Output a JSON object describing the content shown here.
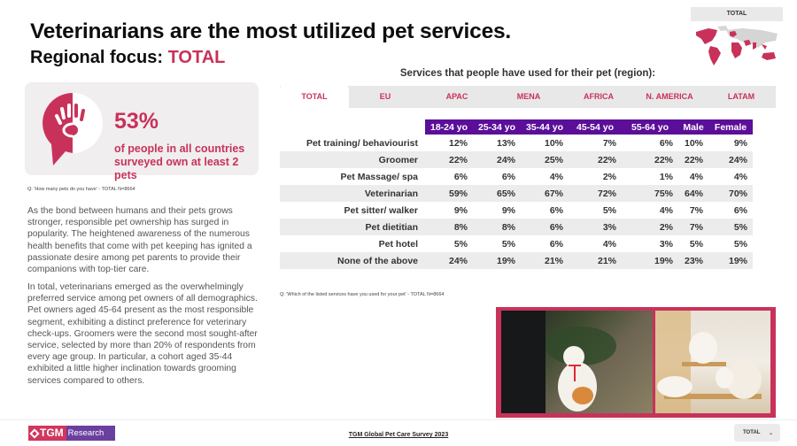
{
  "header": {
    "title": "Veterinarians are the most utilized pet services.",
    "subtitle_prefix": "Regional focus:",
    "subtitle_region": "TOTAL"
  },
  "map_widget": {
    "label": "TOTAL",
    "highlight_color": "#c8325a"
  },
  "stat_card": {
    "icon": "pet-hand-paw-icon",
    "percentage": "53%",
    "text": "of people in all countries surveyed own at least 2 pets",
    "note": "Q: 'How many pets do you have' - TOTAL N=8664"
  },
  "paragraphs": [
    "As the bond between humans and their pets grows stronger, responsible pet ownership has surged in popularity. The heightened awareness of the numerous health benefits that come with pet keeping has ignited a passionate desire among pet parents to provide their companions with top-tier care.",
    "In total, veterinarians emerged as the overwhelmingly preferred service among pet owners of all demographics. Pet owners aged 45-64 present as the most responsible segment, exhibiting a distinct preference for veterinary check-ups. Groomers were the second most sought-after service, selected by more than 20% of respondents from every age group. In particular, a cohort aged 35-44 exhibited a little higher inclination towards grooming services compared to others."
  ],
  "services": {
    "title": "Services that people have used for their pet (region):",
    "tabs": [
      {
        "label": "TOTAL",
        "active": true
      },
      {
        "label": "EU",
        "active": false
      },
      {
        "label": "APAC",
        "active": false
      },
      {
        "label": "MENA",
        "active": false
      },
      {
        "label": "AFRICA",
        "active": false
      },
      {
        "label": "N. AMERICA",
        "active": false
      },
      {
        "label": "LATAM",
        "active": false
      }
    ],
    "columns": [
      "18-24 yo",
      "25-34 yo",
      "35-44 yo",
      "45-54 yo",
      "55-64 yo",
      "Male",
      "Female"
    ],
    "rows": [
      {
        "label": "Pet training/ behaviourist",
        "values": [
          "12%",
          "13%",
          "10%",
          "7%",
          "6%",
          "10%",
          "9%"
        ]
      },
      {
        "label": "Groomer",
        "values": [
          "22%",
          "24%",
          "25%",
          "22%",
          "22%",
          "22%",
          "24%"
        ]
      },
      {
        "label": "Pet Massage/ spa",
        "values": [
          "6%",
          "6%",
          "4%",
          "2%",
          "1%",
          "4%",
          "4%"
        ]
      },
      {
        "label": "Veterinarian",
        "values": [
          "59%",
          "65%",
          "67%",
          "72%",
          "75%",
          "64%",
          "70%"
        ]
      },
      {
        "label": "Pet sitter/ walker",
        "values": [
          "9%",
          "9%",
          "6%",
          "5%",
          "4%",
          "7%",
          "6%"
        ]
      },
      {
        "label": "Pet dietitian",
        "values": [
          "8%",
          "8%",
          "6%",
          "3%",
          "2%",
          "7%",
          "5%"
        ]
      },
      {
        "label": "Pet hotel",
        "values": [
          "5%",
          "5%",
          "6%",
          "4%",
          "3%",
          "5%",
          "5%"
        ]
      },
      {
        "label": "None of the above",
        "values": [
          "24%",
          "19%",
          "21%",
          "21%",
          "19%",
          "23%",
          "19%"
        ]
      }
    ],
    "note": "Q: 'Which of the listed services have you used for your pet' - TOTAL N=8664",
    "header_color": "#5b0f99"
  },
  "photos": [
    {
      "alt": "cat on leash outdoors"
    },
    {
      "alt": "cats on cat tree"
    }
  ],
  "footer": {
    "logo_tgm": "TGM",
    "logo_research": "Research",
    "survey_title": "TGM Global Pet Care Survey 2023",
    "region_select": "TOTAL"
  }
}
